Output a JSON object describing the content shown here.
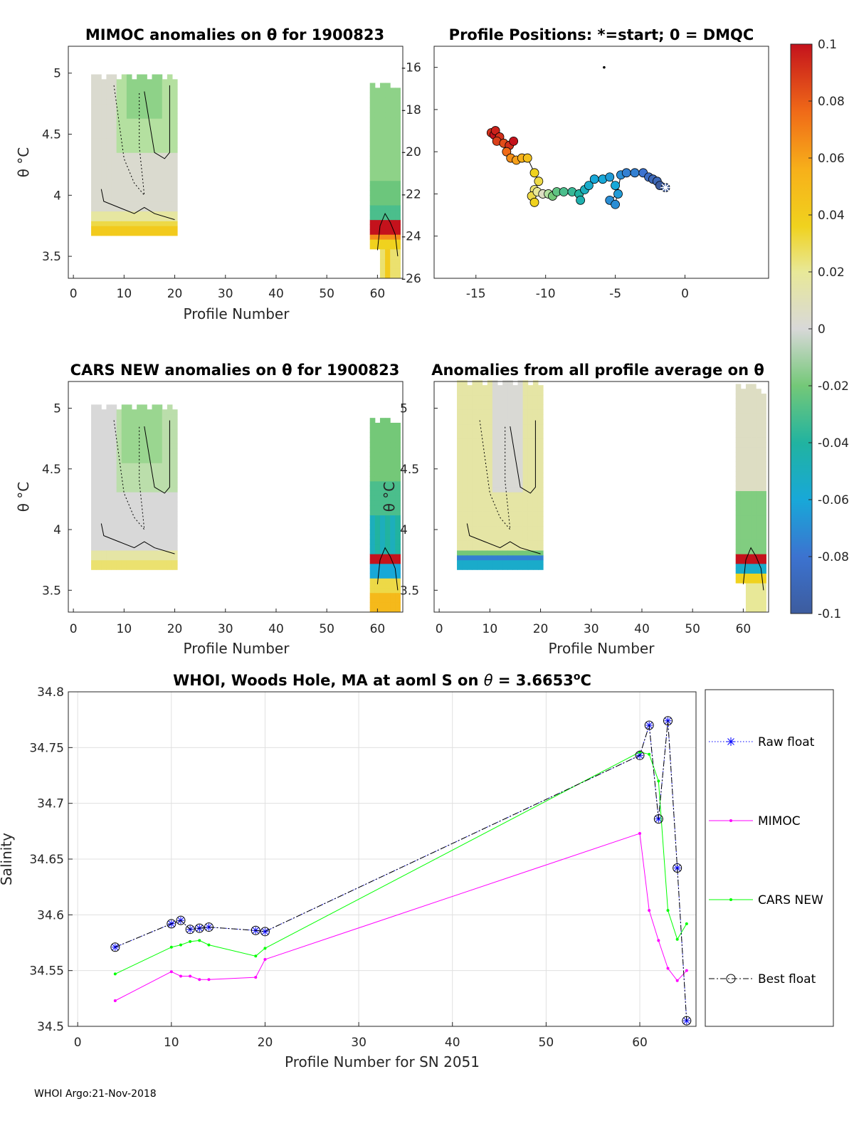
{
  "footer": "WHOI Argo:21-Nov-2018",
  "colors": {
    "raw_float": "#0000ff",
    "mimoc": "#ff00ff",
    "cars_new": "#00ff00",
    "best_float": "#000000",
    "grid": "#e0e0e0",
    "axes": "#262626"
  },
  "chart_data": [
    {
      "type": "heatmap",
      "title": "MIMOC anomalies on θ  for 1900823",
      "xlabel": "Profile Number",
      "ylabel": "θ °C",
      "xlim": [
        -1,
        65
      ],
      "ylim": [
        3.32,
        5.22
      ],
      "xticks": [
        "0",
        "10",
        "20",
        "30",
        "40",
        "50",
        "60"
      ],
      "yticks": [
        "3.5",
        "4",
        "4.5",
        "5"
      ],
      "colorbar_ref": "anomaly",
      "blocks": [
        {
          "profiles": [
            4,
            20
          ],
          "theta_range": [
            3.67,
            4.97
          ],
          "dominant": "near zero to -0.02 (gray/light green) at upper theta; +0.02 to +0.04 (yellow) near 3.7"
        },
        {
          "profiles": [
            59,
            64
          ],
          "theta_range": [
            3.32,
            4.9
          ],
          "dominant": "-0.02 (light green) upper; up to +0.1 (dark red) near 3.75"
        }
      ]
    },
    {
      "type": "scatter",
      "title": "Profile Positions: *=start; 0 = DMQC",
      "xlim": [
        -18,
        6
      ],
      "ylim": [
        -26,
        -15
      ],
      "xticks": [
        "-15",
        "-10",
        "-5",
        "0"
      ],
      "yticks": [
        "-16",
        "-18",
        "-20",
        "-22",
        "-24",
        "-26"
      ],
      "color_by": "anomaly",
      "start_marker": "*",
      "outlier_point": {
        "x": -5.8,
        "y": -16.0
      },
      "track": [
        {
          "x": -13.9,
          "y": -19.1,
          "c": 0.09
        },
        {
          "x": -13.7,
          "y": -19.2,
          "c": 0.1
        },
        {
          "x": -13.6,
          "y": -19.0,
          "c": 0.095
        },
        {
          "x": -13.3,
          "y": -19.3,
          "c": 0.09
        },
        {
          "x": -13.5,
          "y": -19.5,
          "c": 0.085
        },
        {
          "x": -13.0,
          "y": -19.6,
          "c": 0.08
        },
        {
          "x": -12.6,
          "y": -19.7,
          "c": 0.09
        },
        {
          "x": -12.3,
          "y": -19.5,
          "c": 0.1
        },
        {
          "x": -12.8,
          "y": -20.0,
          "c": 0.07
        },
        {
          "x": -12.5,
          "y": -20.3,
          "c": 0.06
        },
        {
          "x": -12.1,
          "y": -20.4,
          "c": 0.055
        },
        {
          "x": -11.7,
          "y": -20.3,
          "c": 0.05
        },
        {
          "x": -11.3,
          "y": -20.3,
          "c": 0.04
        },
        {
          "x": -10.8,
          "y": -21.0,
          "c": 0.03
        },
        {
          "x": -10.5,
          "y": -21.4,
          "c": 0.025
        },
        {
          "x": -10.8,
          "y": -21.8,
          "c": 0.02
        },
        {
          "x": -11.0,
          "y": -22.1,
          "c": 0.025
        },
        {
          "x": -10.8,
          "y": -22.4,
          "c": 0.03
        },
        {
          "x": -10.6,
          "y": -21.9,
          "c": 0.015
        },
        {
          "x": -10.2,
          "y": -22.0,
          "c": 0.005
        },
        {
          "x": -9.8,
          "y": -22.0,
          "c": -0.01
        },
        {
          "x": -9.5,
          "y": -22.1,
          "c": -0.02
        },
        {
          "x": -9.2,
          "y": -21.9,
          "c": -0.025
        },
        {
          "x": -8.7,
          "y": -21.9,
          "c": -0.03
        },
        {
          "x": -8.1,
          "y": -21.9,
          "c": -0.035
        },
        {
          "x": -7.6,
          "y": -22.0,
          "c": -0.04
        },
        {
          "x": -7.5,
          "y": -22.3,
          "c": -0.045
        },
        {
          "x": -7.2,
          "y": -21.8,
          "c": -0.05
        },
        {
          "x": -6.9,
          "y": -21.6,
          "c": -0.055
        },
        {
          "x": -6.5,
          "y": -21.3,
          "c": -0.06
        },
        {
          "x": -5.9,
          "y": -21.3,
          "c": -0.06
        },
        {
          "x": -5.4,
          "y": -21.2,
          "c": -0.065
        },
        {
          "x": -5.0,
          "y": -21.6,
          "c": -0.06
        },
        {
          "x": -4.8,
          "y": -22.0,
          "c": -0.065
        },
        {
          "x": -5.4,
          "y": -22.3,
          "c": -0.07
        },
        {
          "x": -5.0,
          "y": -22.5,
          "c": -0.07
        },
        {
          "x": -4.6,
          "y": -21.1,
          "c": -0.07
        },
        {
          "x": -4.2,
          "y": -21.0,
          "c": -0.075
        },
        {
          "x": -3.6,
          "y": -21.0,
          "c": -0.075
        },
        {
          "x": -3.0,
          "y": -21.0,
          "c": -0.08
        },
        {
          "x": -2.6,
          "y": -21.2,
          "c": -0.085
        },
        {
          "x": -2.3,
          "y": -21.3,
          "c": -0.09
        },
        {
          "x": -2.0,
          "y": -21.4,
          "c": -0.09
        },
        {
          "x": -1.8,
          "y": -21.6,
          "c": -0.1
        },
        {
          "x": -1.4,
          "y": -21.7,
          "c": -0.1
        }
      ]
    },
    {
      "type": "heatmap",
      "title": "CARS NEW anomalies on θ for 1900823",
      "xlabel": "Profile Number",
      "ylabel": "θ °C",
      "xlim": [
        -1,
        65
      ],
      "ylim": [
        3.32,
        5.22
      ],
      "xticks": [
        "0",
        "10",
        "20",
        "30",
        "40",
        "50",
        "60"
      ],
      "yticks": [
        "3.5",
        "4",
        "4.5",
        "5"
      ],
      "colorbar_ref": "anomaly",
      "blocks": [
        {
          "profiles": [
            4,
            20
          ],
          "theta_range": [
            3.67,
            5.02
          ],
          "dominant": "near zero to -0.02 (gray/light green); +0.02 (light yellow) near 3.7"
        },
        {
          "profiles": [
            59,
            64
          ],
          "theta_range": [
            3.32,
            4.9
          ],
          "dominant": "-0.02 to -0.05 (green) upper; up to +0.1 (dark red) near 3.75"
        }
      ]
    },
    {
      "type": "heatmap",
      "title": "Anomalies from all profile average on θ",
      "xlabel": "Profile Number",
      "ylabel": "θ °C",
      "xlim": [
        -1,
        65
      ],
      "ylim": [
        3.32,
        5.22
      ],
      "xticks": [
        "0",
        "10",
        "20",
        "30",
        "40",
        "50",
        "60"
      ],
      "yticks": [
        "3.5",
        "4",
        "4.5",
        "5"
      ],
      "colorbar_ref": "anomaly",
      "blocks": [
        {
          "profiles": [
            4,
            20
          ],
          "theta_range": [
            3.67,
            5.22
          ],
          "dominant": "+0.01 to +0.02 (light yellow) with gray core; -0.05 to -0.08 (green/blue) near 3.7"
        },
        {
          "profiles": [
            59,
            64
          ],
          "theta_range": [
            3.32,
            5.17
          ],
          "dominant": "-0.02 (light green) upper; up to +0.1 (dark red) near 3.75"
        }
      ]
    },
    {
      "type": "colorbar",
      "min": -0.1,
      "max": 0.1,
      "tick_labels": [
        "0.1",
        "0.08",
        "0.06",
        "0.04",
        "0.02",
        "0",
        "-0.02",
        "-0.04",
        "-0.06",
        "-0.08",
        "-0.1"
      ]
    },
    {
      "type": "line",
      "title_prefix": "WHOI, Woods Hole, MA at aoml S on ",
      "title_theta": "θ",
      "title_value": " = 3.6653",
      "title_degree": "o",
      "title_unit": "C",
      "xlabel": "Profile Number for SN 2051",
      "ylabel": "Salinity",
      "xlim": [
        -1,
        66
      ],
      "ylim": [
        34.5,
        34.8
      ],
      "xticks": [
        "0",
        "10",
        "20",
        "30",
        "40",
        "50",
        "60"
      ],
      "yticks": [
        "34.5",
        "34.55",
        "34.6",
        "34.65",
        "34.7",
        "34.75",
        "34.8"
      ],
      "grid": true,
      "legend_position": "outside-right",
      "series": [
        {
          "name": "Raw float",
          "style": "dotted",
          "marker": "asterisk",
          "color": "#0000ff",
          "x": [
            4,
            10,
            11,
            12,
            13,
            14,
            19,
            20,
            60,
            61,
            62,
            63,
            64,
            65
          ],
          "y": [
            34.571,
            34.592,
            34.595,
            34.587,
            34.588,
            34.589,
            34.586,
            34.585,
            34.743,
            34.77,
            34.686,
            34.774,
            34.642,
            34.505
          ]
        },
        {
          "name": "MIMOC",
          "style": "solid",
          "marker": "dot",
          "color": "#ff00ff",
          "x": [
            4,
            10,
            11,
            12,
            13,
            14,
            19,
            20,
            60,
            61,
            62,
            63,
            64,
            65
          ],
          "y": [
            34.523,
            34.549,
            34.545,
            34.545,
            34.542,
            34.542,
            34.544,
            34.56,
            34.673,
            34.604,
            34.577,
            34.552,
            34.541,
            34.55
          ]
        },
        {
          "name": "CARS NEW",
          "style": "solid",
          "marker": "dot",
          "color": "#00ff00",
          "x": [
            4,
            10,
            11,
            12,
            13,
            14,
            19,
            20,
            60,
            61,
            62,
            63,
            64,
            65
          ],
          "y": [
            34.547,
            34.571,
            34.573,
            34.576,
            34.577,
            34.573,
            34.563,
            34.57,
            34.746,
            34.744,
            34.72,
            34.604,
            34.578,
            34.592
          ]
        },
        {
          "name": "Best float",
          "style": "dashdot",
          "marker": "circle",
          "color": "#000000",
          "x": [
            4,
            10,
            11,
            12,
            13,
            14,
            19,
            20,
            60,
            61,
            62,
            63,
            64,
            65
          ],
          "y": [
            34.571,
            34.592,
            34.595,
            34.587,
            34.588,
            34.589,
            34.586,
            34.585,
            34.743,
            34.77,
            34.686,
            34.774,
            34.642,
            34.505
          ]
        }
      ]
    }
  ]
}
